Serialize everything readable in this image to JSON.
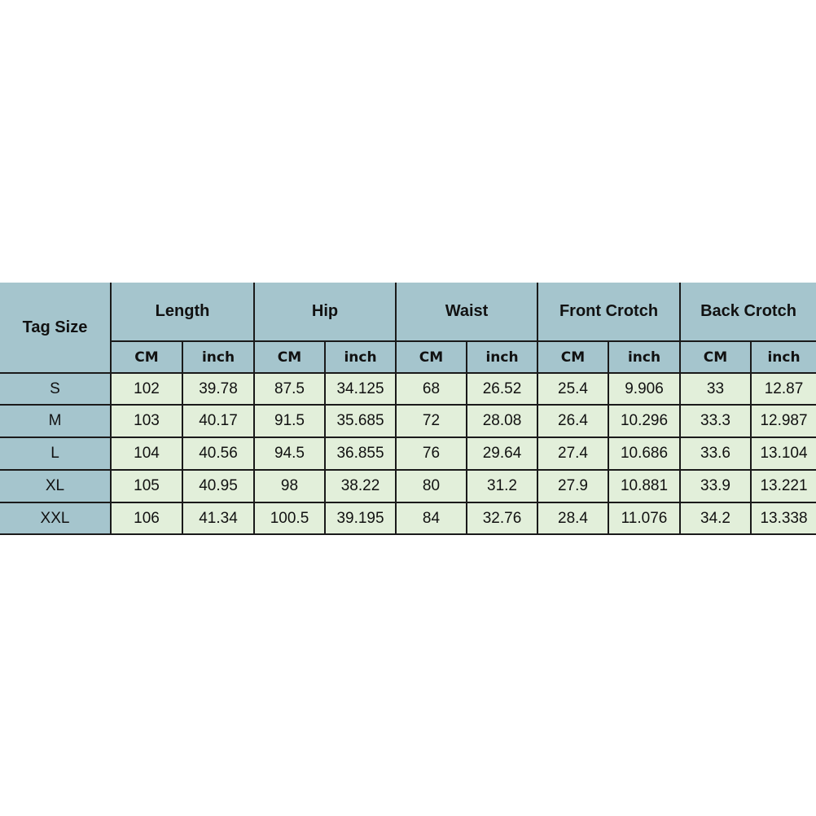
{
  "table": {
    "corner": "Tag Size",
    "groups": [
      "Length",
      "Hip",
      "Waist",
      "Front Crotch",
      "Back Crotch"
    ],
    "units": [
      "CM",
      "inch"
    ],
    "rows": [
      [
        "S",
        102,
        39.78,
        87.5,
        34.125,
        68,
        26.52,
        25.4,
        9.906,
        33,
        12.87
      ],
      [
        "M",
        103,
        40.17,
        91.5,
        35.685,
        72,
        28.08,
        26.4,
        10.296,
        33.3,
        12.987
      ],
      [
        "L",
        104,
        40.56,
        94.5,
        36.855,
        76,
        29.64,
        27.4,
        10.686,
        33.6,
        13.104
      ],
      [
        "XL",
        105,
        40.95,
        98,
        38.22,
        80,
        31.2,
        27.9,
        10.881,
        33.9,
        13.221
      ],
      [
        "XXL",
        106,
        41.34,
        100.5,
        39.195,
        84,
        32.76,
        28.4,
        11.076,
        34.2,
        13.338
      ]
    ]
  }
}
